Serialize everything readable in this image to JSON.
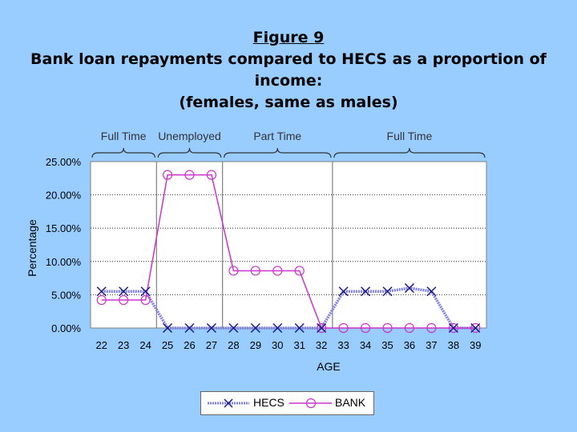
{
  "title": {
    "line1": "Figure 9",
    "line2": "Bank loan repayments compared to HECS  as a proportion of income:",
    "line3": "(females, same as males)"
  },
  "colors": {
    "hecs": "#8080e0",
    "hecs_marker": "#1a1a8a",
    "bank": "#cc33cc",
    "background": "#99ccff"
  },
  "chart_data": {
    "type": "line",
    "xlabel": "AGE",
    "ylabel": "Percentage",
    "categories": [
      "22",
      "23",
      "24",
      "25",
      "26",
      "27",
      "28",
      "29",
      "30",
      "31",
      "32",
      "33",
      "34",
      "35",
      "36",
      "37",
      "38",
      "39"
    ],
    "y_ticks": [
      "25.00%",
      "20.00%",
      "15.00%",
      "10.00%",
      "5.00%",
      "0.00%"
    ],
    "ylim": [
      0,
      25
    ],
    "series": [
      {
        "name": "HECS",
        "marker": "x",
        "values": [
          5.5,
          5.5,
          5.5,
          0,
          0,
          0,
          0,
          0,
          0,
          0,
          0,
          5.5,
          5.5,
          5.5,
          6,
          5.5,
          0,
          0
        ]
      },
      {
        "name": "BANK",
        "marker": "o",
        "values": [
          4.2,
          4.2,
          4.2,
          23,
          23,
          23,
          8.6,
          8.6,
          8.6,
          8.6,
          0,
          0,
          0,
          0,
          0,
          0,
          0,
          0
        ]
      }
    ],
    "phases": [
      {
        "label": "Full Time",
        "from": "22",
        "to": "24"
      },
      {
        "label": "Unemployed",
        "from": "25",
        "to": "27"
      },
      {
        "label": "Part Time",
        "from": "28",
        "to": "32"
      },
      {
        "label": "Full Time",
        "from": "33",
        "to": "39"
      }
    ],
    "legend_position": "bottom"
  }
}
